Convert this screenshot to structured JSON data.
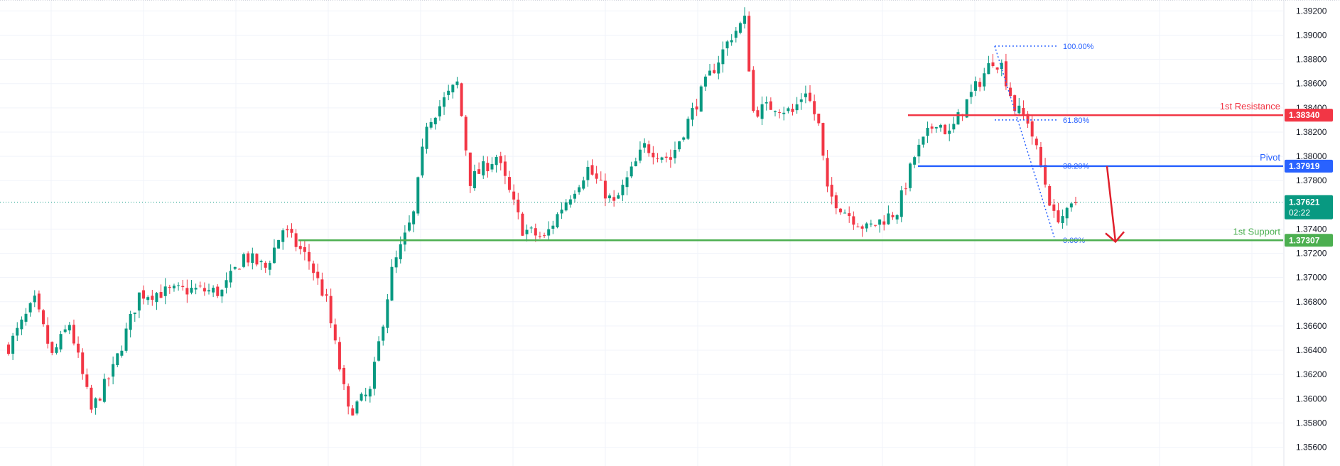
{
  "chart_data": {
    "type": "candlestick",
    "y_range": [
      1.3548,
      1.3929
    ],
    "y_ticks": [
      "1.39200",
      "1.39000",
      "1.38800",
      "1.38600",
      "1.38400",
      "1.38200",
      "1.38000",
      "1.37800",
      "1.37400",
      "1.37200",
      "1.37000",
      "1.36800",
      "1.36600",
      "1.36400",
      "1.36200",
      "1.36000",
      "1.35800",
      "1.35600"
    ],
    "grid": true,
    "colors": {
      "up": "#089981",
      "down": "#f23645",
      "resistance": "#f23645",
      "pivot": "#2962ff",
      "support": "#4caf50",
      "fib": "#2962ff",
      "arrow": "#e0202c"
    },
    "price_path": [
      [
        0,
        1.3643
      ],
      [
        6,
        1.368
      ],
      [
        10,
        1.3635
      ],
      [
        14,
        1.3662
      ],
      [
        19,
        1.359
      ],
      [
        24,
        1.3624
      ],
      [
        30,
        1.3686
      ],
      [
        36,
        1.3688
      ],
      [
        42,
        1.369
      ],
      [
        49,
        1.3688
      ],
      [
        54,
        1.3718
      ],
      [
        59,
        1.3708
      ],
      [
        63,
        1.374
      ],
      [
        69,
        1.3714
      ],
      [
        73,
        1.368
      ],
      [
        78,
        1.3589
      ],
      [
        83,
        1.3605
      ],
      [
        88,
        1.3705
      ],
      [
        93,
        1.3752
      ],
      [
        96,
        1.3828
      ],
      [
        103,
        1.386
      ],
      [
        106,
        1.378
      ],
      [
        112,
        1.38
      ],
      [
        118,
        1.374
      ],
      [
        123,
        1.3732
      ],
      [
        127,
        1.3758
      ],
      [
        133,
        1.379
      ],
      [
        139,
        1.376
      ],
      [
        146,
        1.3808
      ],
      [
        152,
        1.3798
      ],
      [
        160,
        1.386
      ],
      [
        166,
        1.39
      ],
      [
        169,
        1.3912
      ],
      [
        171,
        1.3837
      ],
      [
        176,
        1.3842
      ],
      [
        180,
        1.3836
      ],
      [
        183,
        1.3855
      ],
      [
        186,
        1.3825
      ],
      [
        188,
        1.377
      ],
      [
        192,
        1.3755
      ],
      [
        197,
        1.374
      ],
      [
        204,
        1.3755
      ],
      [
        208,
        1.38
      ],
      [
        213,
        1.383
      ],
      [
        216,
        1.3818
      ],
      [
        220,
        1.3845
      ],
      [
        226,
        1.388
      ],
      [
        228,
        1.3875
      ],
      [
        231,
        1.384
      ],
      [
        234,
        1.383
      ],
      [
        237,
        1.3792
      ],
      [
        240,
        1.375
      ],
      [
        243,
        1.3752
      ],
      [
        245,
        1.3762
      ]
    ],
    "fib_levels": [
      {
        "label": "100.00%",
        "price": 1.3891
      },
      {
        "label": "61.80%",
        "price": 1.383
      },
      {
        "label": "38.20%",
        "price": 1.3792
      },
      {
        "label": "0.00%",
        "price": 1.3731
      }
    ],
    "horizontal_lines": [
      {
        "name": "1st Resistance",
        "price": 1.3834,
        "tag": "1.38340"
      },
      {
        "name": "Pivot",
        "price": 1.37919,
        "tag": "1.37919"
      },
      {
        "name": "1st Support",
        "price": 1.37307,
        "tag": "1.37307"
      }
    ],
    "last_price": {
      "price": 1.37621,
      "tag": "1.37621",
      "countdown": "02:22"
    }
  }
}
